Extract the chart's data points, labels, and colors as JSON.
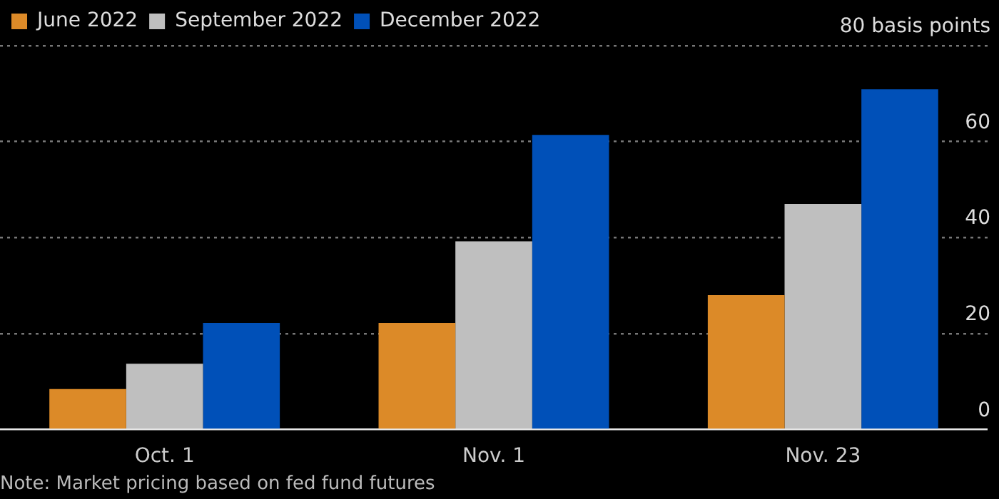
{
  "chart_data": {
    "type": "bar",
    "categories": [
      "Oct. 1",
      "Nov. 1",
      "Nov. 23"
    ],
    "series": [
      {
        "name": "June 2022",
        "color": "#dc8a28",
        "values": [
          8.4,
          22.2,
          28
        ]
      },
      {
        "name": "September 2022",
        "color": "#bfbfbf",
        "values": [
          13.7,
          39.2,
          47
        ]
      },
      {
        "name": "December 2022",
        "color": "#0050b8",
        "values": [
          22.2,
          61.4,
          70.9
        ]
      }
    ],
    "ylim": [
      0,
      80
    ],
    "yticks": [
      0,
      20,
      40,
      60,
      {
        "value": 80,
        "label": "80 basis points"
      }
    ],
    "grid": "y",
    "legend": "top left",
    "annotations": [
      "Note: Market pricing based on fed fund futures"
    ]
  }
}
